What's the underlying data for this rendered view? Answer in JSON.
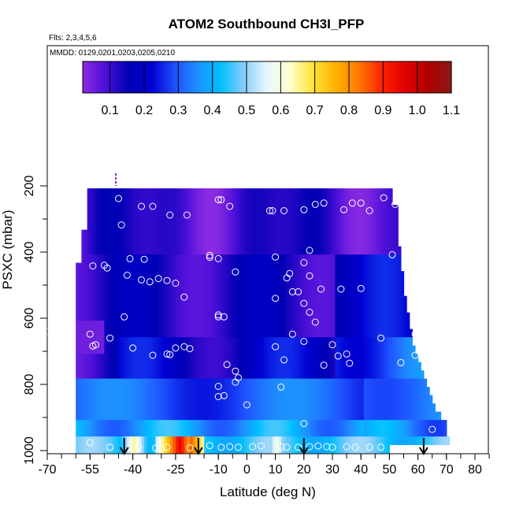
{
  "chart_data": {
    "type": "heatmap",
    "title": "ATOM2 Southbound CH3I_PFP",
    "subtitle_flights": "Flts: 2,3,4,5,6",
    "subtitle_dates": "MMDD: 0129,0201,0203,0205,0210",
    "xlabel": "Latitude (deg N)",
    "ylabel": "PSXC (mbar)",
    "xlim": [
      -70,
      85
    ],
    "ylim": [
      1010,
      100
    ],
    "x_ticks": [
      -70,
      -55,
      -40,
      -25,
      -10,
      0,
      10,
      20,
      30,
      40,
      50,
      60,
      70,
      80
    ],
    "y_ticks": [
      200,
      400,
      600,
      800,
      1000
    ],
    "colorbar": {
      "min": 0.02,
      "max": 1.1,
      "ticks": [
        0.1,
        0.2,
        0.3,
        0.4,
        0.5,
        0.6,
        0.7,
        0.8,
        0.9,
        1.0,
        1.1
      ],
      "tick_labels": [
        "0.1",
        "0.2",
        "0.3",
        "0.4",
        "0.5",
        "0.6",
        "0.7",
        "0.8",
        "0.9",
        "1.0",
        "1.1"
      ],
      "colors": [
        "#8a2be2",
        "#4b0fd8",
        "#0000b4",
        "#0000d2",
        "#1e50ff",
        "#1e90ff",
        "#00bfff",
        "#87cefa",
        "#e8f8ff",
        "#ffffcc",
        "#ffe135",
        "#ffb000",
        "#ff7800",
        "#ff2000",
        "#e00000",
        "#b00000",
        "#8b1a1a"
      ]
    },
    "pressure_levels": [
      220,
      245,
      270,
      295,
      320,
      345,
      370,
      395,
      420,
      445,
      470,
      495,
      520,
      545,
      570,
      595,
      620,
      645,
      670,
      695,
      720,
      745,
      770,
      795,
      820,
      845,
      870,
      895,
      920,
      945,
      970,
      995
    ],
    "level_lat_extent": [
      [
        -56,
        51
      ],
      [
        -56,
        51
      ],
      [
        -56,
        53
      ],
      [
        -56,
        53
      ],
      [
        -56,
        53
      ],
      [
        -58,
        53
      ],
      [
        -58,
        53
      ],
      [
        -58,
        54
      ],
      [
        -58,
        54
      ],
      [
        -60,
        54
      ],
      [
        -60,
        55
      ],
      [
        -60,
        55
      ],
      [
        -60,
        55
      ],
      [
        -60,
        56
      ],
      [
        -60,
        56
      ],
      [
        -60,
        57
      ],
      [
        -60,
        57
      ],
      [
        -60,
        58
      ],
      [
        -60,
        58
      ],
      [
        -60,
        59
      ],
      [
        -60,
        60
      ],
      [
        -60,
        61
      ],
      [
        -60,
        62
      ],
      [
        -60,
        63
      ],
      [
        -60,
        64
      ],
      [
        -60,
        65
      ],
      [
        -60,
        66
      ],
      [
        -60,
        68
      ],
      [
        -60,
        70
      ],
      [
        -60,
        70
      ],
      [
        -60,
        71
      ],
      [
        -60,
        50
      ]
    ],
    "hotspots_surface": [
      {
        "lat": -40,
        "value": 0.65
      },
      {
        "lat": -28,
        "value": 0.75
      },
      {
        "lat": -24,
        "value": 0.95
      },
      {
        "lat": -20,
        "value": 0.85
      },
      {
        "lat": 10,
        "value": 0.6
      }
    ],
    "sample_points": [
      [
        -45,
        238
      ],
      [
        -37,
        262
      ],
      [
        -33,
        262
      ],
      [
        -27,
        288
      ],
      [
        -21,
        288
      ],
      [
        -10,
        242
      ],
      [
        -9,
        242
      ],
      [
        -6,
        262
      ],
      [
        8,
        275
      ],
      [
        9,
        275
      ],
      [
        13,
        275
      ],
      [
        20,
        272
      ],
      [
        24,
        256
      ],
      [
        27,
        252
      ],
      [
        34,
        272
      ],
      [
        37,
        252
      ],
      [
        40,
        252
      ],
      [
        43,
        275
      ],
      [
        48,
        236
      ],
      [
        52,
        256
      ],
      [
        60,
        275
      ],
      [
        -44,
        318
      ],
      [
        -41,
        420
      ],
      [
        -36,
        422
      ],
      [
        -13,
        410
      ],
      [
        -13,
        416
      ],
      [
        -10,
        420
      ],
      [
        -4,
        460
      ],
      [
        10,
        415
      ],
      [
        14,
        478
      ],
      [
        20,
        432
      ],
      [
        22,
        395
      ],
      [
        -42,
        470
      ],
      [
        -37,
        484
      ],
      [
        -34,
        490
      ],
      [
        -31,
        480
      ],
      [
        -28,
        486
      ],
      [
        -25,
        494
      ],
      [
        -54,
        442
      ],
      [
        -50,
        440
      ],
      [
        -49,
        448
      ],
      [
        -22,
        536
      ],
      [
        15,
        465
      ],
      [
        16,
        520
      ],
      [
        22,
        472
      ],
      [
        26,
        512
      ],
      [
        33,
        512
      ],
      [
        40,
        510
      ],
      [
        51,
        408
      ],
      [
        58,
        412
      ],
      [
        59,
        490
      ],
      [
        -43,
        596
      ],
      [
        -10,
        590
      ],
      [
        -10,
        596
      ],
      [
        -8,
        596
      ],
      [
        10,
        540
      ],
      [
        18,
        520
      ],
      [
        20,
        555
      ],
      [
        22,
        582
      ],
      [
        24,
        612
      ],
      [
        60,
        592
      ],
      [
        -70,
        640
      ],
      [
        -55,
        648
      ],
      [
        -54,
        684
      ],
      [
        -53,
        680
      ],
      [
        -48,
        660
      ],
      [
        -40,
        690
      ],
      [
        -33,
        712
      ],
      [
        -28,
        708
      ],
      [
        -27,
        710
      ],
      [
        -25,
        690
      ],
      [
        -22,
        686
      ],
      [
        -20,
        692
      ],
      [
        10,
        686
      ],
      [
        13,
        726
      ],
      [
        16,
        648
      ],
      [
        30,
        680
      ],
      [
        32,
        714
      ],
      [
        35,
        708
      ],
      [
        36,
        736
      ],
      [
        47,
        660
      ],
      [
        54,
        734
      ],
      [
        59,
        648
      ],
      [
        59,
        712
      ],
      [
        -7,
        740
      ],
      [
        -4,
        760
      ],
      [
        -4,
        793
      ],
      [
        -3,
        780
      ],
      [
        -10,
        806
      ],
      [
        -10,
        837
      ],
      [
        -8,
        834
      ],
      [
        12,
        808
      ],
      [
        20,
        670
      ],
      [
        27,
        742
      ],
      [
        -55,
        976
      ],
      [
        -48,
        990
      ],
      [
        -38,
        990
      ],
      [
        -32,
        992
      ],
      [
        -28,
        990
      ],
      [
        -20,
        992
      ],
      [
        -13,
        985
      ],
      [
        -9,
        990
      ],
      [
        -6,
        988
      ],
      [
        -3,
        990
      ],
      [
        0,
        862
      ],
      [
        2,
        988
      ],
      [
        5,
        986
      ],
      [
        12,
        988
      ],
      [
        14,
        990
      ],
      [
        18,
        990
      ],
      [
        22,
        988
      ],
      [
        25,
        986
      ],
      [
        28,
        988
      ],
      [
        30,
        990
      ],
      [
        35,
        988
      ],
      [
        38,
        990
      ],
      [
        43,
        990
      ],
      [
        47,
        990
      ],
      [
        20,
        918
      ],
      [
        65,
        936
      ]
    ],
    "arrow_markers_lat": [
      -43,
      -17,
      20,
      62
    ]
  }
}
